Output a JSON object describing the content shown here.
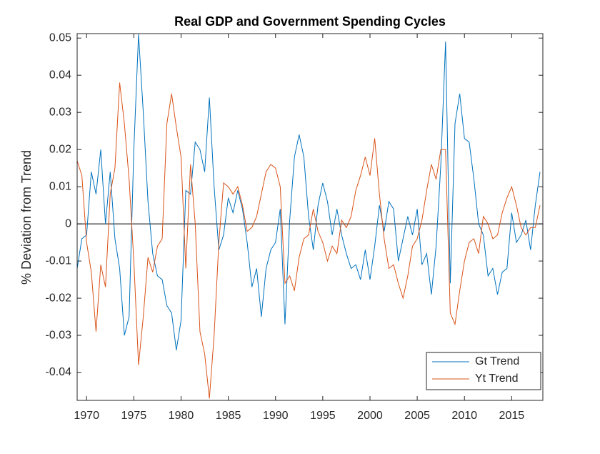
{
  "chart_data": {
    "type": "line",
    "title": "Real GDP and Government Spending Cycles",
    "ylabel": "% Deviation from Trend",
    "x": [
      1969,
      1969.5,
      1970,
      1970.5,
      1971,
      1971.5,
      1972,
      1972.5,
      1973,
      1973.5,
      1974,
      1974.5,
      1975,
      1975.5,
      1976,
      1976.5,
      1977,
      1977.5,
      1978,
      1978.5,
      1979,
      1979.5,
      1980,
      1980.5,
      1981,
      1981.5,
      1982,
      1982.5,
      1983,
      1983.5,
      1984,
      1984.5,
      1985,
      1985.5,
      1986,
      1986.5,
      1987,
      1987.5,
      1988,
      1988.5,
      1989,
      1989.5,
      1990,
      1990.5,
      1991,
      1991.5,
      1992,
      1992.5,
      1993,
      1993.5,
      1994,
      1994.5,
      1995,
      1995.5,
      1996,
      1996.5,
      1997,
      1997.5,
      1998,
      1998.5,
      1999,
      1999.5,
      2000,
      2000.5,
      2001,
      2001.5,
      2002,
      2002.5,
      2003,
      2003.5,
      2004,
      2004.5,
      2005,
      2005.5,
      2006,
      2006.5,
      2007,
      2007.5,
      2008,
      2008.5,
      2009,
      2009.5,
      2010,
      2010.5,
      2011,
      2011.5,
      2012,
      2012.5,
      2013,
      2013.5,
      2014,
      2014.5,
      2015,
      2015.5,
      2016,
      2016.5,
      2017,
      2017.5,
      2018
    ],
    "series": [
      {
        "name": "Gt Trend",
        "color": "#0072bd",
        "values": [
          -0.012,
          -0.004,
          -0.003,
          0.014,
          0.008,
          0.02,
          0.0,
          0.014,
          -0.004,
          -0.012,
          -0.03,
          -0.025,
          0.02,
          0.051,
          0.03,
          0.006,
          -0.008,
          -0.014,
          -0.015,
          -0.022,
          -0.024,
          -0.034,
          -0.026,
          0.009,
          0.008,
          0.022,
          0.02,
          0.014,
          0.034,
          0.01,
          -0.007,
          -0.003,
          0.007,
          0.003,
          0.009,
          0.004,
          -0.005,
          -0.017,
          -0.012,
          -0.025,
          -0.012,
          -0.007,
          -0.005,
          0.004,
          -0.027,
          0.001,
          0.018,
          0.024,
          0.018,
          0.002,
          -0.007,
          0.005,
          0.011,
          0.006,
          -0.003,
          0.004,
          -0.003,
          -0.008,
          -0.012,
          -0.011,
          -0.015,
          -0.007,
          -0.015,
          -0.006,
          0.005,
          -0.002,
          0.006,
          0.004,
          -0.01,
          -0.004,
          0.002,
          -0.003,
          0.004,
          -0.011,
          -0.008,
          -0.019,
          -0.006,
          0.016,
          0.049,
          -0.016,
          0.027,
          0.035,
          0.023,
          0.022,
          0.012,
          0.0,
          -0.003,
          -0.014,
          -0.012,
          -0.019,
          -0.013,
          -0.012,
          0.003,
          -0.005,
          -0.003,
          0.001,
          -0.007,
          0.005,
          0.014
        ]
      },
      {
        "name": "Yt Trend",
        "color": "#d95319",
        "values": [
          0.017,
          0.013,
          -0.005,
          -0.013,
          -0.029,
          -0.011,
          -0.017,
          0.008,
          0.015,
          0.038,
          0.027,
          0.012,
          -0.01,
          -0.038,
          -0.025,
          -0.009,
          -0.013,
          -0.006,
          -0.004,
          0.027,
          0.035,
          0.026,
          0.018,
          -0.012,
          0.016,
          0.0,
          -0.029,
          -0.035,
          -0.047,
          -0.03,
          -0.005,
          0.011,
          0.01,
          0.008,
          0.01,
          0.005,
          -0.002,
          -0.001,
          0.002,
          0.008,
          0.014,
          0.016,
          0.015,
          0.01,
          -0.016,
          -0.014,
          -0.018,
          -0.009,
          -0.004,
          -0.003,
          0.004,
          -0.002,
          -0.005,
          -0.01,
          -0.006,
          -0.008,
          0.001,
          -0.001,
          0.002,
          0.009,
          0.013,
          0.018,
          0.013,
          0.023,
          0.008,
          -0.004,
          -0.012,
          -0.011,
          -0.016,
          -0.02,
          -0.014,
          -0.006,
          -0.004,
          0.001,
          0.009,
          0.016,
          0.012,
          0.02,
          0.02,
          -0.024,
          -0.027,
          -0.018,
          -0.01,
          -0.005,
          -0.004,
          -0.008,
          0.002,
          0.0,
          -0.004,
          -0.003,
          0.003,
          0.007,
          0.01,
          0.005,
          -0.001,
          -0.003,
          -0.001,
          -0.001,
          0.005
        ]
      }
    ],
    "xlim": [
      1969,
      2018.3
    ],
    "xticks": [
      1970,
      1975,
      1980,
      1985,
      1990,
      1995,
      2000,
      2005,
      2010,
      2015
    ],
    "ylim": [
      -0.0475,
      0.0512
    ],
    "yticks": [
      -0.04,
      -0.03,
      -0.02,
      -0.01,
      0,
      0.01,
      0.02,
      0.03,
      0.04,
      0.05
    ],
    "hline": 0,
    "grid": false,
    "legend": "southeast"
  }
}
